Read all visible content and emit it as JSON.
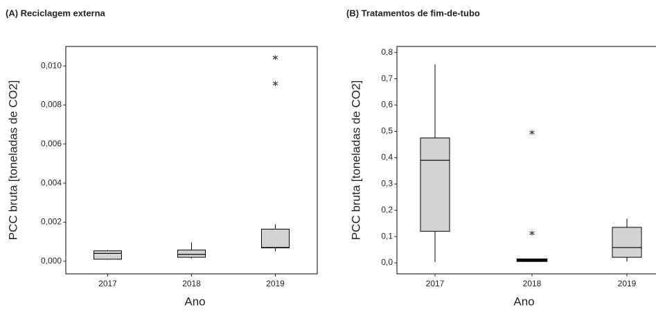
{
  "chart_data": [
    {
      "type": "box",
      "title": "(A) Reciclagem externa",
      "ylabel": "PCC bruta [toneladas de CO2]",
      "xlabel": "Ano",
      "categories": [
        "2017",
        "2018",
        "2019"
      ],
      "color": "#d3d3d3",
      "boxes": [
        {
          "min": 7e-05,
          "q1": 0.0001,
          "median": 0.0004,
          "q3": 0.00053,
          "max": 0.00057,
          "outliers": []
        },
        {
          "min": 0.00014,
          "q1": 0.0002,
          "median": 0.00035,
          "q3": 0.00057,
          "max": 0.00096,
          "outliers": []
        },
        {
          "min": 0.0005,
          "q1": 0.00068,
          "median": 0.0007,
          "q3": 0.00164,
          "max": 0.00189,
          "outliers": [
            0.01043,
            0.0091
          ]
        }
      ],
      "ylim": [
        -0.00065,
        0.011
      ],
      "yticks": [
        {
          "value": 0,
          "label": "0,000"
        },
        {
          "value": 0.002,
          "label": "0,002"
        },
        {
          "value": 0.004,
          "label": "0,004"
        },
        {
          "value": 0.006,
          "label": "0,006"
        },
        {
          "value": 0.008,
          "label": "0,008"
        },
        {
          "value": 0.01,
          "label": "0,010"
        }
      ]
    },
    {
      "type": "box",
      "title": "(B) Tratamentos de fim-de-tubo",
      "ylabel": "PCC bruta [toneladas de CO2]",
      "xlabel": "Ano",
      "categories": [
        "2017",
        "2018",
        "2019"
      ],
      "color": "#d3d3d3",
      "boxes": [
        {
          "min": 0.003,
          "q1": 0.12,
          "median": 0.39,
          "q3": 0.475,
          "max": 0.755,
          "outliers": []
        },
        {
          "min": 0.005,
          "q1": 0.007,
          "median": 0.01,
          "q3": 0.013,
          "max": 0.015,
          "outliers": [
            0.496,
            0.113
          ]
        },
        {
          "min": 0.005,
          "q1": 0.021,
          "median": 0.058,
          "q3": 0.135,
          "max": 0.168,
          "outliers": []
        }
      ],
      "ylim": [
        -0.042,
        0.823
      ],
      "yticks": [
        {
          "value": 0,
          "label": "0,0"
        },
        {
          "value": 0.1,
          "label": "0,1"
        },
        {
          "value": 0.2,
          "label": "0,2"
        },
        {
          "value": 0.3,
          "label": "0,3"
        },
        {
          "value": 0.4,
          "label": "0,4"
        },
        {
          "value": 0.5,
          "label": "0,5"
        },
        {
          "value": 0.6,
          "label": "0,6"
        },
        {
          "value": 0.7,
          "label": "0,7"
        },
        {
          "value": 0.8,
          "label": "0,8"
        }
      ]
    }
  ]
}
